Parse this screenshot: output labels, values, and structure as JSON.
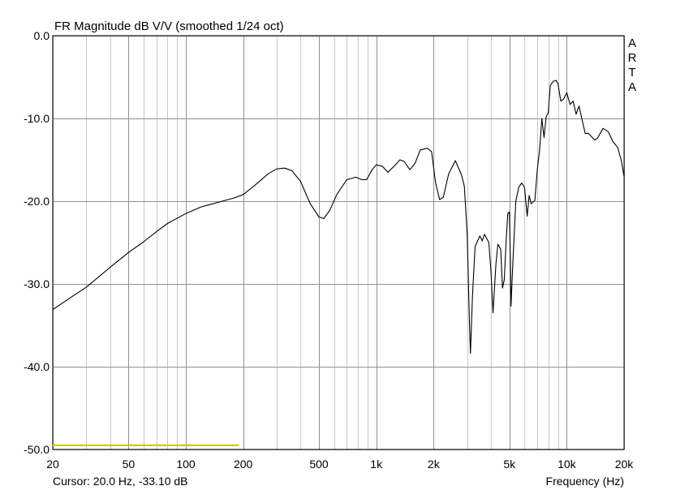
{
  "chart_data": {
    "type": "line",
    "title": "FR Magnitude dB V/V (smoothed 1/24 oct)",
    "xlabel": "Frequency (Hz)",
    "ylabel": "",
    "x_scale": "log",
    "xlim": [
      20,
      20000
    ],
    "ylim": [
      -50,
      0
    ],
    "grid": true,
    "x_ticks": [
      {
        "value": 20,
        "label": "20"
      },
      {
        "value": 50,
        "label": "50"
      },
      {
        "value": 100,
        "label": "100"
      },
      {
        "value": 200,
        "label": "200"
      },
      {
        "value": 500,
        "label": "500"
      },
      {
        "value": 1000,
        "label": "1k"
      },
      {
        "value": 2000,
        "label": "2k"
      },
      {
        "value": 5000,
        "label": "5k"
      },
      {
        "value": 10000,
        "label": "10k"
      },
      {
        "value": 20000,
        "label": "20k"
      }
    ],
    "y_ticks": [
      {
        "value": 0,
        "label": "0.0"
      },
      {
        "value": -10,
        "label": "-10.0"
      },
      {
        "value": -20,
        "label": "-20.0"
      },
      {
        "value": -30,
        "label": "-30.0"
      },
      {
        "value": -40,
        "label": "-40.0"
      },
      {
        "value": -50,
        "label": "-50.0"
      }
    ],
    "watermark": [
      "A",
      "R",
      "T",
      "A"
    ],
    "cursor_text": "Cursor: 20.0 Hz, -33.10 dB",
    "series": [
      {
        "color": "#000000",
        "points": [
          [
            20,
            -33.1
          ],
          [
            25,
            -31.6
          ],
          [
            30,
            -30.4
          ],
          [
            40,
            -28.0
          ],
          [
            50,
            -26.2
          ],
          [
            60,
            -24.9
          ],
          [
            70,
            -23.7
          ],
          [
            80,
            -22.7
          ],
          [
            100,
            -21.5
          ],
          [
            120,
            -20.7
          ],
          [
            150,
            -20.1
          ],
          [
            180,
            -19.6
          ],
          [
            200,
            -19.2
          ],
          [
            230,
            -18.1
          ],
          [
            270,
            -16.7
          ],
          [
            300,
            -16.1
          ],
          [
            330,
            -16.0
          ],
          [
            360,
            -16.3
          ],
          [
            400,
            -17.6
          ],
          [
            450,
            -20.3
          ],
          [
            500,
            -21.9
          ],
          [
            530,
            -22.1
          ],
          [
            570,
            -21.1
          ],
          [
            620,
            -19.2
          ],
          [
            700,
            -17.4
          ],
          [
            780,
            -17.1
          ],
          [
            840,
            -17.4
          ],
          [
            890,
            -17.4
          ],
          [
            950,
            -16.2
          ],
          [
            1000,
            -15.6
          ],
          [
            1080,
            -15.8
          ],
          [
            1150,
            -16.5
          ],
          [
            1250,
            -15.7
          ],
          [
            1330,
            -15.0
          ],
          [
            1400,
            -15.2
          ],
          [
            1500,
            -16.2
          ],
          [
            1600,
            -15.4
          ],
          [
            1700,
            -13.8
          ],
          [
            1850,
            -13.6
          ],
          [
            1950,
            -14.0
          ],
          [
            2050,
            -17.8
          ],
          [
            2150,
            -19.8
          ],
          [
            2250,
            -19.5
          ],
          [
            2400,
            -16.7
          ],
          [
            2600,
            -15.1
          ],
          [
            2800,
            -16.8
          ],
          [
            2900,
            -18.2
          ],
          [
            3000,
            -24.0
          ],
          [
            3080,
            -34.0
          ],
          [
            3120,
            -38.4
          ],
          [
            3200,
            -31.5
          ],
          [
            3300,
            -25.5
          ],
          [
            3400,
            -24.8
          ],
          [
            3500,
            -24.2
          ],
          [
            3600,
            -24.8
          ],
          [
            3700,
            -24.0
          ],
          [
            3900,
            -25.0
          ],
          [
            4000,
            -28.5
          ],
          [
            4100,
            -33.5
          ],
          [
            4250,
            -27.5
          ],
          [
            4350,
            -25.2
          ],
          [
            4500,
            -25.8
          ],
          [
            4600,
            -30.5
          ],
          [
            4700,
            -29.5
          ],
          [
            4800,
            -25.0
          ],
          [
            4900,
            -21.5
          ],
          [
            5000,
            -21.3
          ],
          [
            5050,
            -26.0
          ],
          [
            5100,
            -32.7
          ],
          [
            5200,
            -28.0
          ],
          [
            5400,
            -20.0
          ],
          [
            5600,
            -18.3
          ],
          [
            5800,
            -17.8
          ],
          [
            6000,
            -18.3
          ],
          [
            6200,
            -21.8
          ],
          [
            6350,
            -19.3
          ],
          [
            6500,
            -20.3
          ],
          [
            6800,
            -19.9
          ],
          [
            7000,
            -16.3
          ],
          [
            7200,
            -13.8
          ],
          [
            7400,
            -10.0
          ],
          [
            7600,
            -12.3
          ],
          [
            7800,
            -9.8
          ],
          [
            8000,
            -9.3
          ],
          [
            8200,
            -6.0
          ],
          [
            8500,
            -5.5
          ],
          [
            8800,
            -5.4
          ],
          [
            9000,
            -5.8
          ],
          [
            9300,
            -7.9
          ],
          [
            9600,
            -7.7
          ],
          [
            10000,
            -6.9
          ],
          [
            10400,
            -8.3
          ],
          [
            10800,
            -7.9
          ],
          [
            11200,
            -9.5
          ],
          [
            11600,
            -8.5
          ],
          [
            12000,
            -10.0
          ],
          [
            12500,
            -11.8
          ],
          [
            13000,
            -11.8
          ],
          [
            14000,
            -12.6
          ],
          [
            14500,
            -12.4
          ],
          [
            15500,
            -11.2
          ],
          [
            16500,
            -11.6
          ],
          [
            17500,
            -12.8
          ],
          [
            18500,
            -13.5
          ],
          [
            19300,
            -15.0
          ],
          [
            20000,
            -17.0
          ]
        ]
      }
    ],
    "cursor_line": {
      "color": "#c8c800",
      "x_range": [
        20,
        190
      ],
      "y": -49.5
    }
  }
}
